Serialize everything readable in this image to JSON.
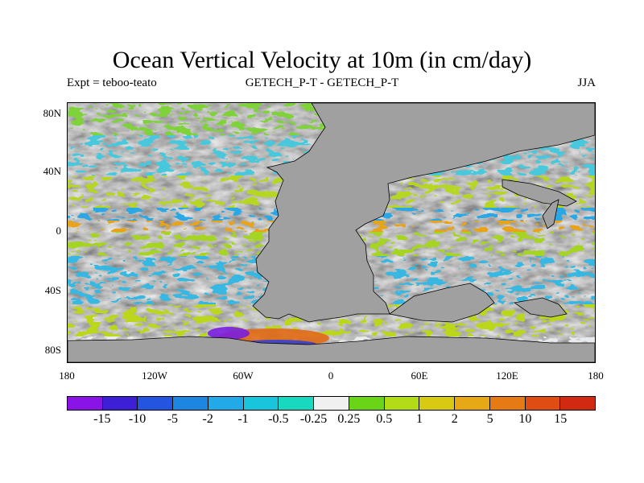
{
  "title": "Ocean Vertical Velocity at 10m (in cm/day)",
  "subtitle_left": "Expt = teboo-teato",
  "subtitle_center": "GETECH_P-T - GETECH_P-T",
  "subtitle_right": "JJA",
  "lat_labels": [
    "80N",
    "40N",
    "0",
    "40S",
    "80S"
  ],
  "lon_labels": [
    "180",
    "120W",
    "60W",
    "0",
    "60E",
    "120E",
    "180"
  ],
  "colorbar": {
    "labels": [
      "-15",
      "-10",
      "-5",
      "-2",
      "-1",
      "-0.5",
      "-0.25",
      "0.25",
      "0.5",
      "1",
      "2",
      "5",
      "10",
      "15"
    ],
    "colors": [
      "#8a14e6",
      "#3d1fd6",
      "#2355e0",
      "#1c86e0",
      "#21a9e8",
      "#18c5dc",
      "#19d8c0",
      "#f0f0f0",
      "#6ad416",
      "#b2dc17",
      "#d8ca13",
      "#e6a815",
      "#e67a14",
      "#e04d12",
      "#d22a10"
    ]
  },
  "land_color": "#a0a0a0",
  "chart_data": {
    "type": "map",
    "variable": "Ocean Vertical Velocity at 10m",
    "units": "cm/day",
    "season": "JJA",
    "lon_range": [
      -180,
      180
    ],
    "lat_range": [
      -90,
      90
    ]
  }
}
